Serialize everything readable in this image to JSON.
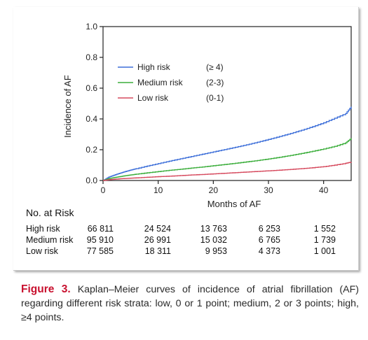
{
  "chart_data": {
    "type": "line",
    "title": "",
    "xlabel": "Months of AF",
    "ylabel": "Incidence of AF",
    "xlim": [
      0,
      45
    ],
    "ylim": [
      0,
      1.0
    ],
    "x_ticks": [
      0,
      10,
      20,
      30,
      40
    ],
    "y_ticks": [
      "0.0",
      "0.2",
      "0.4",
      "0.6",
      "0.8",
      "1.0"
    ],
    "grid": false,
    "legend_position": "upper-left",
    "series": [
      {
        "name": "High risk",
        "range_label": "(≥ 4)",
        "color": "#3d6fd9",
        "x": [
          0,
          1,
          2,
          3,
          4,
          5,
          6,
          8,
          10,
          12,
          14,
          16,
          18,
          20,
          22,
          24,
          26,
          28,
          30,
          32,
          34,
          36,
          38,
          40,
          42,
          44,
          45
        ],
        "y": [
          0.0,
          0.022,
          0.035,
          0.047,
          0.058,
          0.068,
          0.077,
          0.094,
          0.11,
          0.126,
          0.141,
          0.156,
          0.171,
          0.186,
          0.201,
          0.216,
          0.232,
          0.249,
          0.267,
          0.286,
          0.306,
          0.327,
          0.35,
          0.375,
          0.405,
          0.435,
          0.48
        ]
      },
      {
        "name": "Medium risk",
        "range_label": "(2-3)",
        "color": "#3cae3c",
        "x": [
          0,
          1,
          2,
          3,
          4,
          5,
          6,
          8,
          10,
          12,
          14,
          16,
          18,
          20,
          22,
          24,
          26,
          28,
          30,
          32,
          34,
          36,
          38,
          40,
          42,
          44,
          45
        ],
        "y": [
          0.0,
          0.012,
          0.019,
          0.025,
          0.031,
          0.036,
          0.041,
          0.05,
          0.058,
          0.066,
          0.073,
          0.081,
          0.088,
          0.096,
          0.104,
          0.112,
          0.121,
          0.13,
          0.14,
          0.151,
          0.163,
          0.176,
          0.19,
          0.205,
          0.222,
          0.245,
          0.275
        ]
      },
      {
        "name": "Low risk",
        "range_label": "(0-1)",
        "color": "#d64a5e",
        "x": [
          0,
          1,
          2,
          3,
          4,
          5,
          6,
          8,
          10,
          12,
          14,
          16,
          18,
          20,
          22,
          24,
          26,
          28,
          30,
          32,
          34,
          36,
          38,
          40,
          42,
          44,
          45
        ],
        "y": [
          0.0,
          0.005,
          0.008,
          0.011,
          0.013,
          0.015,
          0.017,
          0.021,
          0.025,
          0.028,
          0.032,
          0.036,
          0.039,
          0.043,
          0.047,
          0.051,
          0.055,
          0.059,
          0.063,
          0.067,
          0.072,
          0.077,
          0.083,
          0.09,
          0.1,
          0.112,
          0.12
        ]
      }
    ]
  },
  "at_risk": {
    "title": "No. at Risk",
    "time_points": [
      0,
      10,
      20,
      30,
      40
    ],
    "rows": [
      {
        "label": "High risk",
        "counts": [
          "66 811",
          "24 524",
          "13 763",
          "6 253",
          "1 552"
        ]
      },
      {
        "label": "Medium risk",
        "counts": [
          "95 910",
          "26 991",
          "15 032",
          "6 765",
          "1 739"
        ]
      },
      {
        "label": "Low risk",
        "counts": [
          "77 585",
          "18 311",
          "9 953",
          "4 373",
          "1 001"
        ]
      }
    ]
  },
  "caption": {
    "label": "Figure 3.",
    "text": "Kaplan–Meier curves of incidence of atrial fibrillation (AF) regarding different risk strata: low, 0 or 1 point; medium, 2 or 3 points; high, ≥4 points."
  }
}
